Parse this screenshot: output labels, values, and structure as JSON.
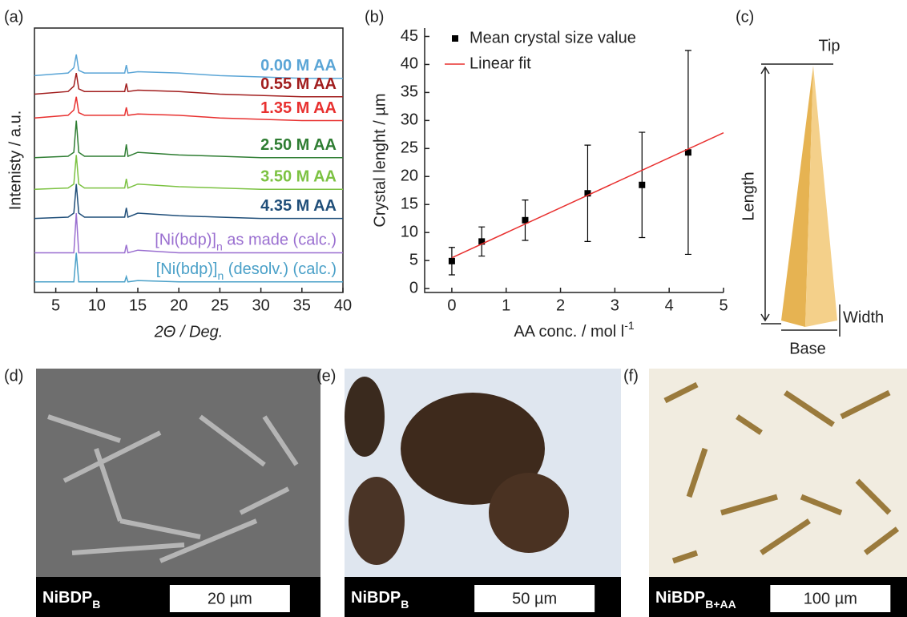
{
  "panel_labels": [
    "(a)",
    "(b)",
    "(c)",
    "(d)",
    "(e)",
    "(f)"
  ],
  "diagram": {
    "tip": "Tip",
    "length": "Length",
    "width": "Width",
    "base": "Base"
  },
  "images": [
    {
      "caption_parts": [
        "NiBDP",
        "B"
      ],
      "scale": "20 µm"
    },
    {
      "caption_parts": [
        "NiBDP",
        "B"
      ],
      "scale": "50 µm"
    },
    {
      "caption_parts": [
        "NiBDP",
        "B+AA"
      ],
      "scale": "100 µm"
    }
  ],
  "chart_data": [
    {
      "type": "line",
      "x_label": "2Θ / Deg.",
      "y_label": "Intenisty / a.u.",
      "xlim": [
        2.4,
        40
      ],
      "xticks": [
        5,
        10,
        15,
        20,
        25,
        30,
        35,
        40
      ],
      "ylim": [
        0,
        10
      ],
      "x": [
        2.4,
        6.5,
        7.2,
        7.5,
        7.8,
        8.5,
        13.4,
        13.6,
        13.8,
        15,
        20,
        25,
        30,
        35,
        40
      ],
      "series": [
        {
          "name": "0.00 M AA",
          "color": "#5aa5d6",
          "values": [
            8.2,
            8.3,
            8.5,
            9.0,
            8.4,
            8.3,
            8.3,
            8.6,
            8.3,
            8.35,
            8.3,
            8.2,
            8.15,
            8.1,
            8.1
          ]
        },
        {
          "name": "0.55 M AA",
          "color": "#a11d1d",
          "values": [
            7.5,
            7.6,
            7.8,
            8.3,
            7.7,
            7.6,
            7.6,
            7.9,
            7.6,
            7.65,
            7.6,
            7.5,
            7.45,
            7.4,
            7.4
          ]
        },
        {
          "name": "1.35 M AA",
          "color": "#e8302f",
          "values": [
            6.6,
            6.7,
            6.9,
            7.4,
            6.8,
            6.7,
            6.7,
            7.0,
            6.7,
            6.75,
            6.7,
            6.6,
            6.55,
            6.5,
            6.5
          ]
        },
        {
          "name": "2.50 M AA",
          "color": "#2e7d32",
          "values": [
            5.1,
            5.15,
            5.3,
            6.5,
            5.3,
            5.15,
            5.15,
            5.6,
            5.15,
            5.3,
            5.2,
            5.15,
            5.1,
            5.1,
            5.1
          ]
        },
        {
          "name": "3.50 M AA",
          "color": "#7cc242",
          "values": [
            3.9,
            3.95,
            4.1,
            5.2,
            4.1,
            3.95,
            3.95,
            4.3,
            3.95,
            4.1,
            4.0,
            3.95,
            3.9,
            3.9,
            3.9
          ]
        },
        {
          "name": "4.35 M AA",
          "color": "#1f4e79",
          "values": [
            2.8,
            2.85,
            3.0,
            4.1,
            3.0,
            2.85,
            2.85,
            3.2,
            2.85,
            3.0,
            2.9,
            2.85,
            2.8,
            2.8,
            2.8
          ]
        },
        {
          "name_parts": [
            "[Ni(bdp)]",
            "n",
            " as made (calc.)"
          ],
          "color": "#9a6fd0",
          "values": [
            1.5,
            1.5,
            1.5,
            3.0,
            1.5,
            1.5,
            1.5,
            1.8,
            1.5,
            1.6,
            1.5,
            1.5,
            1.5,
            1.5,
            1.5
          ]
        },
        {
          "name_parts": [
            "[Ni(bdp)]",
            "n",
            " (desolv.) (calc.)"
          ],
          "color": "#4aa0c8",
          "values": [
            0.4,
            0.4,
            0.4,
            1.5,
            0.4,
            0.4,
            0.4,
            0.6,
            0.4,
            0.45,
            0.4,
            0.4,
            0.4,
            0.4,
            0.4
          ]
        }
      ]
    },
    {
      "type": "scatter",
      "x_label_parts": [
        "AA conc. / mol l",
        "-1"
      ],
      "y_label": "Crystal lenght / µm",
      "xlim": [
        -0.5,
        5
      ],
      "xticks": [
        0,
        1,
        2,
        3,
        4,
        5
      ],
      "ylim": [
        -0.7,
        46.5
      ],
      "yticks": [
        0,
        5,
        10,
        15,
        20,
        25,
        30,
        35,
        40,
        45
      ],
      "series": [
        {
          "name": "Mean crystal size value",
          "color": "#000000",
          "x": [
            0,
            0.55,
            1.35,
            2.5,
            3.5,
            4.35
          ],
          "values": [
            4.9,
            8.4,
            12.2,
            17.0,
            18.5,
            24.3
          ],
          "errors": [
            2.45,
            2.6,
            3.6,
            8.6,
            9.4,
            18.2
          ]
        },
        {
          "name": "Linear fit",
          "color": "#e8302f",
          "type": "line",
          "x": [
            0,
            5
          ],
          "values": [
            5.5,
            27.8
          ]
        }
      ]
    }
  ]
}
